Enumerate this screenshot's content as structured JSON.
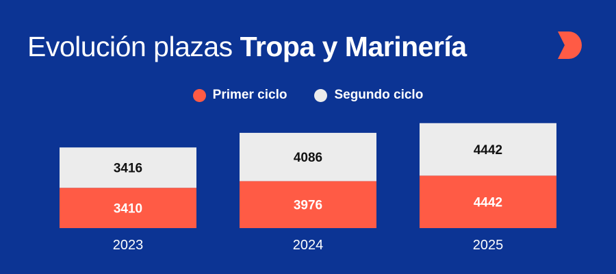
{
  "title": {
    "regular": "Evolución plazas",
    "bold": "Tropa y Marinería"
  },
  "logo": {
    "icon": "d-logo-icon",
    "color": "#ff5b45"
  },
  "legend": [
    {
      "label": "Primer ciclo",
      "color": "#ff5b45"
    },
    {
      "label": "Segundo ciclo",
      "color": "#ececec"
    }
  ],
  "colors": {
    "background": "#0c3494",
    "axis_label": "#ffffff",
    "top_value": "#111111",
    "bottom_value": "#ffffff"
  },
  "chart_data": {
    "type": "bar",
    "stacked": true,
    "categories": [
      "2023",
      "2024",
      "2025"
    ],
    "series": [
      {
        "name": "Primer ciclo",
        "values": [
          3410,
          3976,
          4442
        ]
      },
      {
        "name": "Segundo ciclo",
        "values": [
          3416,
          4086,
          4442
        ]
      }
    ],
    "data_labels": true,
    "legend_position": "top-center",
    "grid": false
  }
}
